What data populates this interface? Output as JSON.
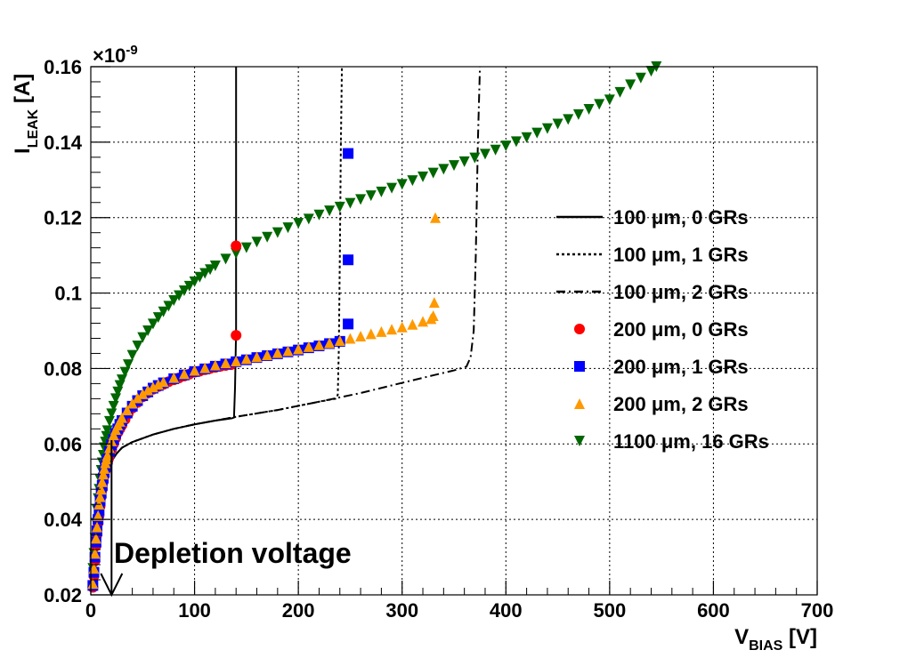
{
  "chart_data": {
    "type": "scatter",
    "title": "",
    "xlabel": {
      "main": "V",
      "sub": "BIAS",
      "unit": " [V]"
    },
    "ylabel": {
      "main": "I",
      "sub": "LEAK",
      "unit": " [A]"
    },
    "xlim": [
      0,
      700
    ],
    "ylim": [
      0.02,
      0.16
    ],
    "y_exponent_label": "×10",
    "y_exponent_power": "-9",
    "grid": true,
    "x_ticks": [
      0,
      100,
      200,
      300,
      400,
      500,
      600,
      700
    ],
    "x_tick_labels": [
      "0",
      "100",
      "200",
      "300",
      "400",
      "500",
      "600",
      "700"
    ],
    "y_ticks": [
      0.02,
      0.04,
      0.06,
      0.08,
      0.1,
      0.12,
      0.14,
      0.16
    ],
    "y_tick_labels": [
      "0.02",
      "0.04",
      "0.06",
      "0.08",
      "0.1",
      "0.12",
      "0.14",
      "0.16"
    ],
    "annotation": {
      "text": "Depletion voltage",
      "arrow_x": 20,
      "arrow_y_from": 0.061,
      "arrow_y_to": 0.02
    },
    "legend": {
      "position": "right",
      "entries": [
        {
          "label": "100 μm, 0 GRs",
          "style": "solid-line",
          "color": "#000000"
        },
        {
          "label": "100 μm, 1 GRs",
          "style": "dotted-line",
          "color": "#000000"
        },
        {
          "label": "100 μm, 2 GRs",
          "style": "dashdot-line",
          "color": "#000000"
        },
        {
          "label": "200 μm, 0 GRs",
          "style": "circle",
          "color": "#ff0000"
        },
        {
          "label": "200 μm, 1 GRs",
          "style": "square",
          "color": "#0000ff"
        },
        {
          "label": "200 μm, 2 GRs",
          "style": "triangle-up",
          "color": "#ff9900"
        },
        {
          "label": "1100 μm, 16 GRs",
          "style": "triangle-down",
          "color": "#006600"
        }
      ]
    },
    "series": [
      {
        "name": "100 μm, 0 GRs",
        "kind": "line",
        "dash": "",
        "color": "#000000",
        "x": [
          2,
          5,
          8,
          11,
          14,
          17,
          20,
          25,
          30,
          40,
          60,
          80,
          100,
          120,
          136,
          138,
          139,
          140,
          140,
          140
        ],
        "y": [
          0.022,
          0.03,
          0.04,
          0.048,
          0.052,
          0.054,
          0.0555,
          0.0575,
          0.059,
          0.0605,
          0.0625,
          0.064,
          0.0652,
          0.0662,
          0.0668,
          0.067,
          0.075,
          0.09,
          0.12,
          0.16
        ]
      },
      {
        "name": "100 μm, 1 GRs",
        "kind": "line",
        "dash": "3,3",
        "color": "#000000",
        "x": [
          2,
          5,
          8,
          11,
          14,
          17,
          20,
          25,
          30,
          40,
          60,
          80,
          100,
          140,
          180,
          220,
          236,
          238,
          239,
          240,
          241,
          242
        ],
        "y": [
          0.022,
          0.03,
          0.04,
          0.048,
          0.052,
          0.054,
          0.0555,
          0.0575,
          0.059,
          0.0605,
          0.0625,
          0.064,
          0.0652,
          0.0672,
          0.069,
          0.0712,
          0.072,
          0.073,
          0.085,
          0.11,
          0.14,
          0.16
        ]
      },
      {
        "name": "100 μm, 2 GRs",
        "kind": "line",
        "dash": "10,4,2,4",
        "color": "#000000",
        "x": [
          2,
          5,
          8,
          11,
          14,
          17,
          20,
          25,
          30,
          40,
          60,
          80,
          100,
          140,
          180,
          220,
          260,
          300,
          330,
          350,
          362,
          366,
          369,
          371,
          373,
          375
        ],
        "y": [
          0.022,
          0.03,
          0.04,
          0.048,
          0.052,
          0.054,
          0.0555,
          0.0575,
          0.059,
          0.0605,
          0.0625,
          0.064,
          0.0652,
          0.0672,
          0.069,
          0.0712,
          0.0735,
          0.0762,
          0.0782,
          0.0795,
          0.0805,
          0.083,
          0.09,
          0.11,
          0.14,
          0.16
        ]
      },
      {
        "name": "200 μm, 0 GRs",
        "kind": "circle",
        "color": "#ff0000",
        "x": [
          2,
          3,
          4,
          5,
          6,
          7,
          8,
          9,
          10,
          11,
          12,
          13,
          14,
          15,
          16,
          17,
          18,
          20,
          22,
          24,
          26,
          28,
          30,
          33,
          36,
          40,
          45,
          50,
          55,
          60,
          65,
          70,
          75,
          80,
          85,
          90,
          95,
          100,
          105,
          110,
          115,
          120,
          125,
          130,
          135,
          140,
          140
        ],
        "y": [
          0.022,
          0.025,
          0.029,
          0.033,
          0.036,
          0.039,
          0.041,
          0.0435,
          0.046,
          0.048,
          0.05,
          0.0515,
          0.053,
          0.054,
          0.055,
          0.056,
          0.057,
          0.0585,
          0.06,
          0.0615,
          0.063,
          0.064,
          0.065,
          0.0665,
          0.068,
          0.0695,
          0.071,
          0.0725,
          0.0735,
          0.0745,
          0.0752,
          0.0758,
          0.0765,
          0.077,
          0.0775,
          0.078,
          0.0785,
          0.079,
          0.0793,
          0.0797,
          0.08,
          0.0803,
          0.0806,
          0.0808,
          0.081,
          0.0888,
          0.1125
        ]
      },
      {
        "name": "200 μm, 1 GRs",
        "kind": "square",
        "color": "#0000ff",
        "x": [
          2,
          3,
          4,
          5,
          6,
          7,
          8,
          9,
          10,
          11,
          12,
          13,
          14,
          15,
          16,
          18,
          20,
          22,
          24,
          26,
          28,
          30,
          35,
          40,
          45,
          50,
          55,
          60,
          65,
          70,
          80,
          90,
          100,
          110,
          120,
          130,
          140,
          150,
          160,
          170,
          180,
          190,
          200,
          210,
          220,
          230,
          240,
          248,
          248,
          248
        ],
        "y": [
          0.0225,
          0.026,
          0.03,
          0.034,
          0.037,
          0.04,
          0.0425,
          0.045,
          0.047,
          0.049,
          0.051,
          0.0525,
          0.054,
          0.055,
          0.056,
          0.058,
          0.0598,
          0.0612,
          0.0628,
          0.064,
          0.0652,
          0.0662,
          0.0682,
          0.07,
          0.0715,
          0.0728,
          0.0738,
          0.0748,
          0.0755,
          0.0762,
          0.0773,
          0.0783,
          0.0792,
          0.0799,
          0.0806,
          0.0812,
          0.0818,
          0.0823,
          0.0829,
          0.0834,
          0.0839,
          0.0844,
          0.0849,
          0.0855,
          0.086,
          0.0866,
          0.0872,
          0.0918,
          0.1088,
          0.137
        ]
      },
      {
        "name": "200 μm, 2 GRs",
        "kind": "triangle-up",
        "color": "#ff9900",
        "x": [
          2,
          3,
          4,
          5,
          6,
          7,
          8,
          9,
          10,
          11,
          12,
          13,
          14,
          15,
          16,
          18,
          20,
          22,
          24,
          26,
          28,
          30,
          35,
          40,
          45,
          50,
          55,
          60,
          65,
          70,
          80,
          90,
          100,
          110,
          120,
          130,
          140,
          150,
          160,
          170,
          180,
          190,
          200,
          210,
          220,
          230,
          240,
          250,
          260,
          270,
          280,
          290,
          300,
          310,
          320,
          328,
          330,
          331,
          332
        ],
        "y": [
          0.023,
          0.027,
          0.031,
          0.035,
          0.038,
          0.041,
          0.044,
          0.046,
          0.048,
          0.05,
          0.052,
          0.0535,
          0.055,
          0.056,
          0.057,
          0.059,
          0.0608,
          0.0624,
          0.0638,
          0.065,
          0.066,
          0.067,
          0.069,
          0.0708,
          0.0722,
          0.0733,
          0.0743,
          0.0751,
          0.0758,
          0.0765,
          0.0776,
          0.0786,
          0.0795,
          0.0802,
          0.0809,
          0.0815,
          0.082,
          0.0826,
          0.0831,
          0.0836,
          0.0842,
          0.0847,
          0.0852,
          0.0858,
          0.0863,
          0.0868,
          0.0874,
          0.088,
          0.0886,
          0.0892,
          0.0898,
          0.0904,
          0.091,
          0.0917,
          0.0925,
          0.0932,
          0.094,
          0.0975,
          0.12
        ]
      },
      {
        "name": "1100 μm, 16 GRs",
        "kind": "triangle-down",
        "color": "#006600",
        "x": [
          2,
          3,
          4,
          5,
          6,
          7,
          8,
          9,
          10,
          11,
          12,
          13,
          14,
          15,
          16,
          18,
          20,
          22,
          24,
          26,
          28,
          30,
          33,
          36,
          40,
          45,
          50,
          55,
          60,
          65,
          70,
          75,
          80,
          85,
          90,
          95,
          100,
          105,
          110,
          115,
          120,
          130,
          140,
          150,
          160,
          170,
          180,
          190,
          200,
          210,
          220,
          230,
          240,
          250,
          260,
          270,
          280,
          290,
          300,
          310,
          320,
          330,
          340,
          350,
          360,
          370,
          380,
          390,
          400,
          410,
          420,
          430,
          440,
          450,
          460,
          470,
          480,
          490,
          500,
          510,
          520,
          530,
          540,
          545
        ],
        "y": [
          0.027,
          0.031,
          0.035,
          0.039,
          0.0425,
          0.0455,
          0.048,
          0.0505,
          0.053,
          0.055,
          0.057,
          0.059,
          0.0605,
          0.062,
          0.0635,
          0.066,
          0.068,
          0.07,
          0.072,
          0.0738,
          0.0755,
          0.077,
          0.079,
          0.081,
          0.0835,
          0.086,
          0.0882,
          0.09,
          0.0918,
          0.0935,
          0.095,
          0.0965,
          0.098,
          0.0993,
          0.1006,
          0.1018,
          0.103,
          0.1042,
          0.1052,
          0.1062,
          0.1072,
          0.109,
          0.1105,
          0.112,
          0.1135,
          0.1148,
          0.116,
          0.1173,
          0.1185,
          0.1196,
          0.1207,
          0.1218,
          0.1228,
          0.1238,
          0.1248,
          0.1258,
          0.1268,
          0.1278,
          0.1288,
          0.1298,
          0.1308,
          0.1318,
          0.1328,
          0.1338,
          0.1348,
          0.1358,
          0.1368,
          0.1379,
          0.139,
          0.1401,
          0.1412,
          0.1424,
          0.1436,
          0.1448,
          0.146,
          0.1473,
          0.1487,
          0.15,
          0.1512,
          0.1532,
          0.1552,
          0.157,
          0.1588,
          0.16
        ]
      }
    ]
  }
}
